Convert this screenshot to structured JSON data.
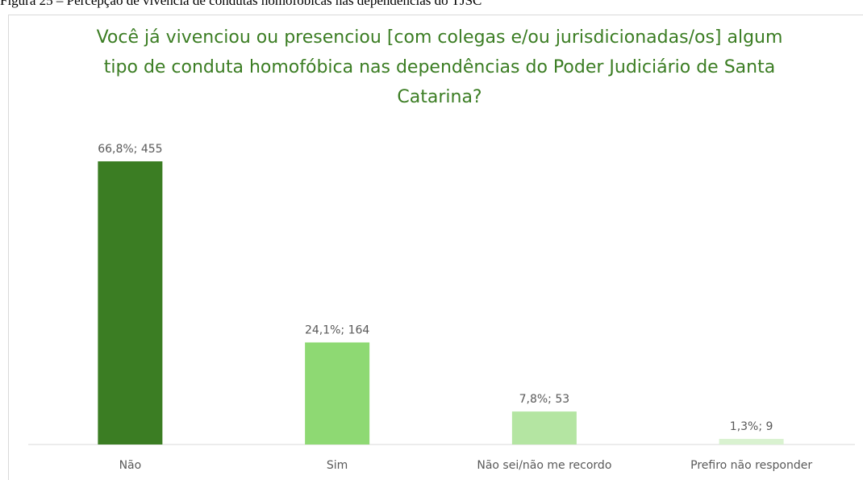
{
  "caption": "Figura 25 – Percepção de vivência de condutas homofóbicas nas dependências do TJSC",
  "chart_data": {
    "type": "bar",
    "title": "Você já vivenciou ou presenciou [com colegas e/ou jurisdicionadas/os] algum tipo de conduta homofóbica nas dependências do Poder Judiciário de Santa Catarina?",
    "categories": [
      "Não",
      "Sim",
      "Não sei/não me recordo",
      "Prefiro não responder"
    ],
    "values": [
      455,
      164,
      53,
      9
    ],
    "value_labels": [
      "66,8%; 455",
      "24,1%; 164",
      "7,8%; 53",
      "1,3%; 9"
    ],
    "colors": [
      "#3b7d23",
      "#8ed973",
      "#b4e5a2",
      "#d9f2d0"
    ]
  }
}
